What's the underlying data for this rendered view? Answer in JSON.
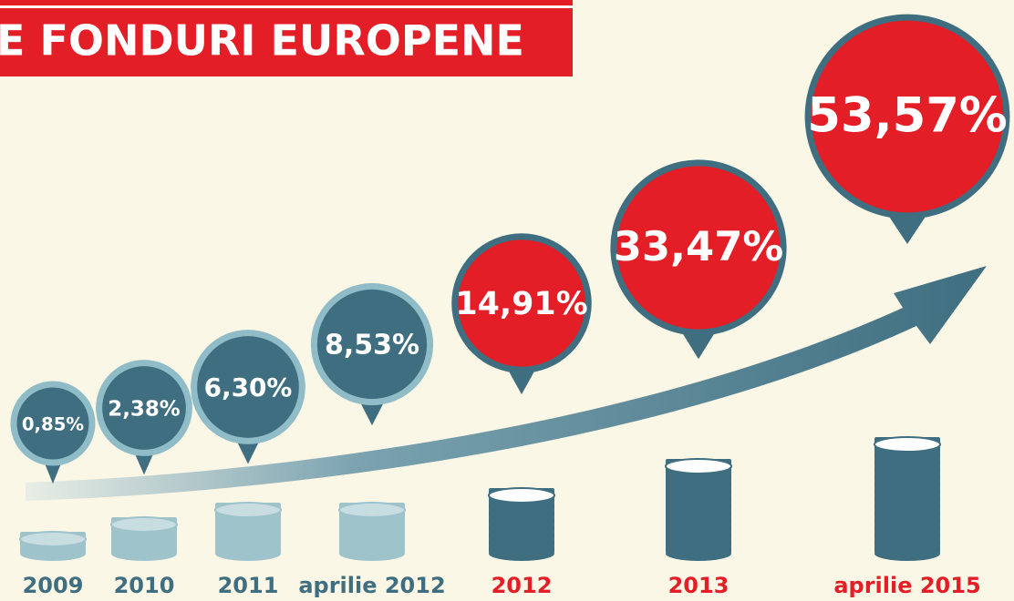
{
  "chart_data": {
    "type": "pin",
    "title": "E FONDURI EUROPENE",
    "categories": [
      "2009",
      "2010",
      "2011",
      "aprilie 2012",
      "2012",
      "2013",
      "aprilie 2015"
    ],
    "values": [
      0.85,
      2.38,
      6.3,
      8.53,
      14.91,
      33.47,
      53.57
    ],
    "value_labels": [
      "0,85%",
      "2,38%",
      "6,30%",
      "8,53%",
      "14,91%",
      "33,47%",
      "53,57%"
    ],
    "colors": [
      "#3e6e80",
      "#3e6e80",
      "#3e6e80",
      "#3e6e80",
      "#e31e26",
      "#e31e26",
      "#e31e26"
    ]
  }
}
